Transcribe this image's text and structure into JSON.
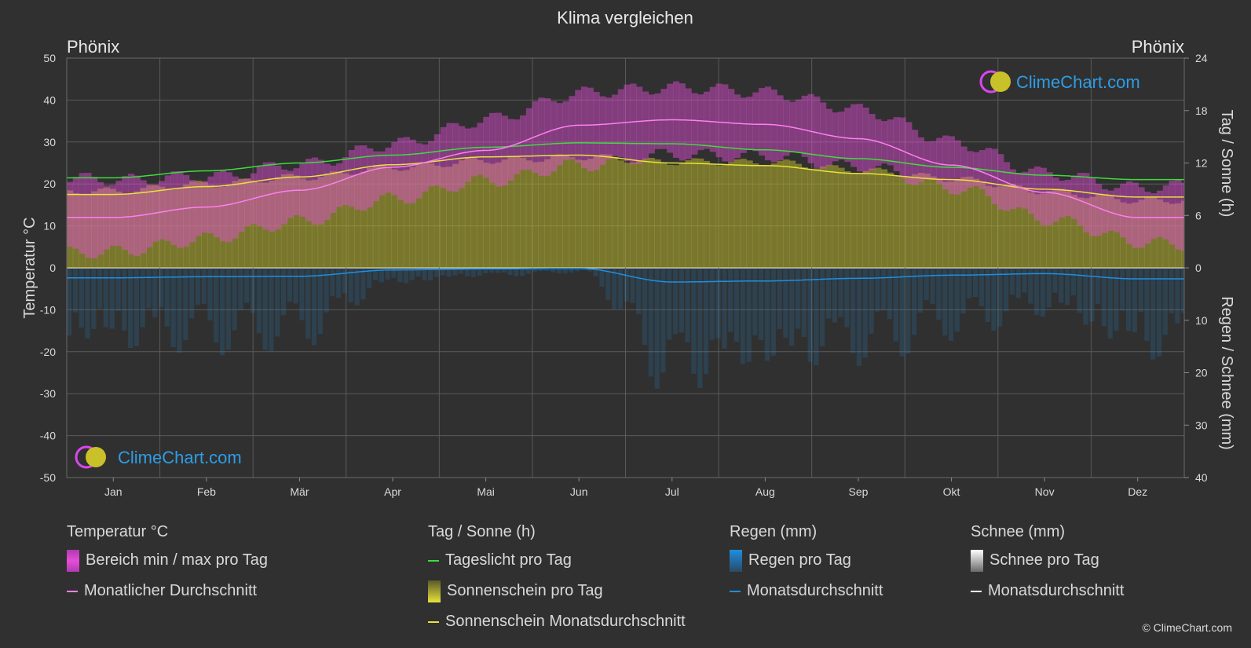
{
  "title": "Klima vergleichen",
  "location_left": "Phönix",
  "location_right": "Phönix",
  "logo_text": "ClimeChart.com",
  "copyright": "© ClimeChart.com",
  "colors": {
    "background": "#303030",
    "temp_range": "#e64dd9",
    "temp_avg": "#ff7ff0",
    "daylight": "#3ddc3d",
    "sunshine_fill": "#b6b32e",
    "sunshine_avg": "#e8e23a",
    "rain": "#1f8ee0",
    "snow": "#ffffff",
    "logo_blue": "#2e9de6"
  },
  "legend": {
    "temperature": {
      "header": "Temperatur °C",
      "range_label": "Bereich min / max pro Tag",
      "avg_label": "Monatlicher Durchschnitt"
    },
    "sun": {
      "header": "Tag / Sonne (h)",
      "daylight_label": "Tageslicht pro Tag",
      "sunshine_label": "Sonnenschein pro Tag",
      "sunshine_avg_label": "Sonnenschein Monatsdurchschnitt"
    },
    "rain": {
      "header": "Regen (mm)",
      "rain_label": "Regen pro Tag",
      "avg_label": "Monatsdurchschnitt"
    },
    "snow": {
      "header": "Schnee (mm)",
      "snow_label": "Schnee pro Tag",
      "avg_label": "Monatsdurchschnitt"
    }
  },
  "chart_data": {
    "type": "area",
    "categories": [
      "Jan",
      "Feb",
      "Mär",
      "Apr",
      "Mai",
      "Jun",
      "Jul",
      "Aug",
      "Sep",
      "Okt",
      "Nov",
      "Dez"
    ],
    "y_left": {
      "label": "Temperatur °C",
      "range": [
        -50,
        50
      ],
      "ticks": [
        50,
        40,
        30,
        20,
        10,
        0,
        -10,
        -20,
        -30,
        -40,
        -50
      ]
    },
    "y_right_top": {
      "label": "Tag / Sonne (h)",
      "range": [
        0,
        24
      ],
      "ticks": [
        24,
        18,
        12,
        6,
        0
      ]
    },
    "y_right_bottom": {
      "label": "Regen / Schnee (mm)",
      "range": [
        0,
        40
      ],
      "ticks": [
        0,
        10,
        20,
        30,
        40
      ]
    },
    "grid": true,
    "series": [
      {
        "name": "Monatlicher Durchschnitt",
        "axis": "temperature",
        "values": [
          12,
          14.5,
          18.5,
          24,
          28,
          34,
          35.3,
          34.2,
          30.8,
          24.5,
          18,
          12
        ]
      },
      {
        "name": "Bereich min / max pro Tag (max)",
        "axis": "temperature",
        "values": [
          20,
          22,
          26,
          31,
          36,
          41,
          41.5,
          40.5,
          37.5,
          31,
          24,
          20
        ]
      },
      {
        "name": "Bereich min / max pro Tag (min)",
        "axis": "temperature",
        "values": [
          5,
          7,
          10,
          15,
          20,
          25,
          28.5,
          28,
          24.5,
          18,
          10,
          5
        ]
      },
      {
        "name": "Tageslicht pro Tag",
        "axis": "sun",
        "values": [
          10.3,
          11.1,
          12,
          12.9,
          13.8,
          14.3,
          14.2,
          13.5,
          12.5,
          11.5,
          10.6,
          10.1
        ]
      },
      {
        "name": "Sonnenschein Monatsdurchschnitt",
        "axis": "sun",
        "values": [
          8.4,
          9.3,
          10.4,
          11.8,
          12.7,
          12.9,
          12,
          11.7,
          10.8,
          10.1,
          9,
          8.1
        ]
      },
      {
        "name": "Regen Monatsdurchschnitt",
        "axis": "rain",
        "values": [
          1.9,
          1.7,
          1.6,
          0.4,
          0.2,
          0.1,
          2.7,
          2.5,
          2,
          1.4,
          1.1,
          2.1
        ]
      },
      {
        "name": "Schnee Monatsdurchschnitt",
        "axis": "rain",
        "values": [
          0,
          0,
          0,
          0,
          0,
          0,
          0,
          0,
          0,
          0,
          0,
          0
        ]
      }
    ]
  }
}
